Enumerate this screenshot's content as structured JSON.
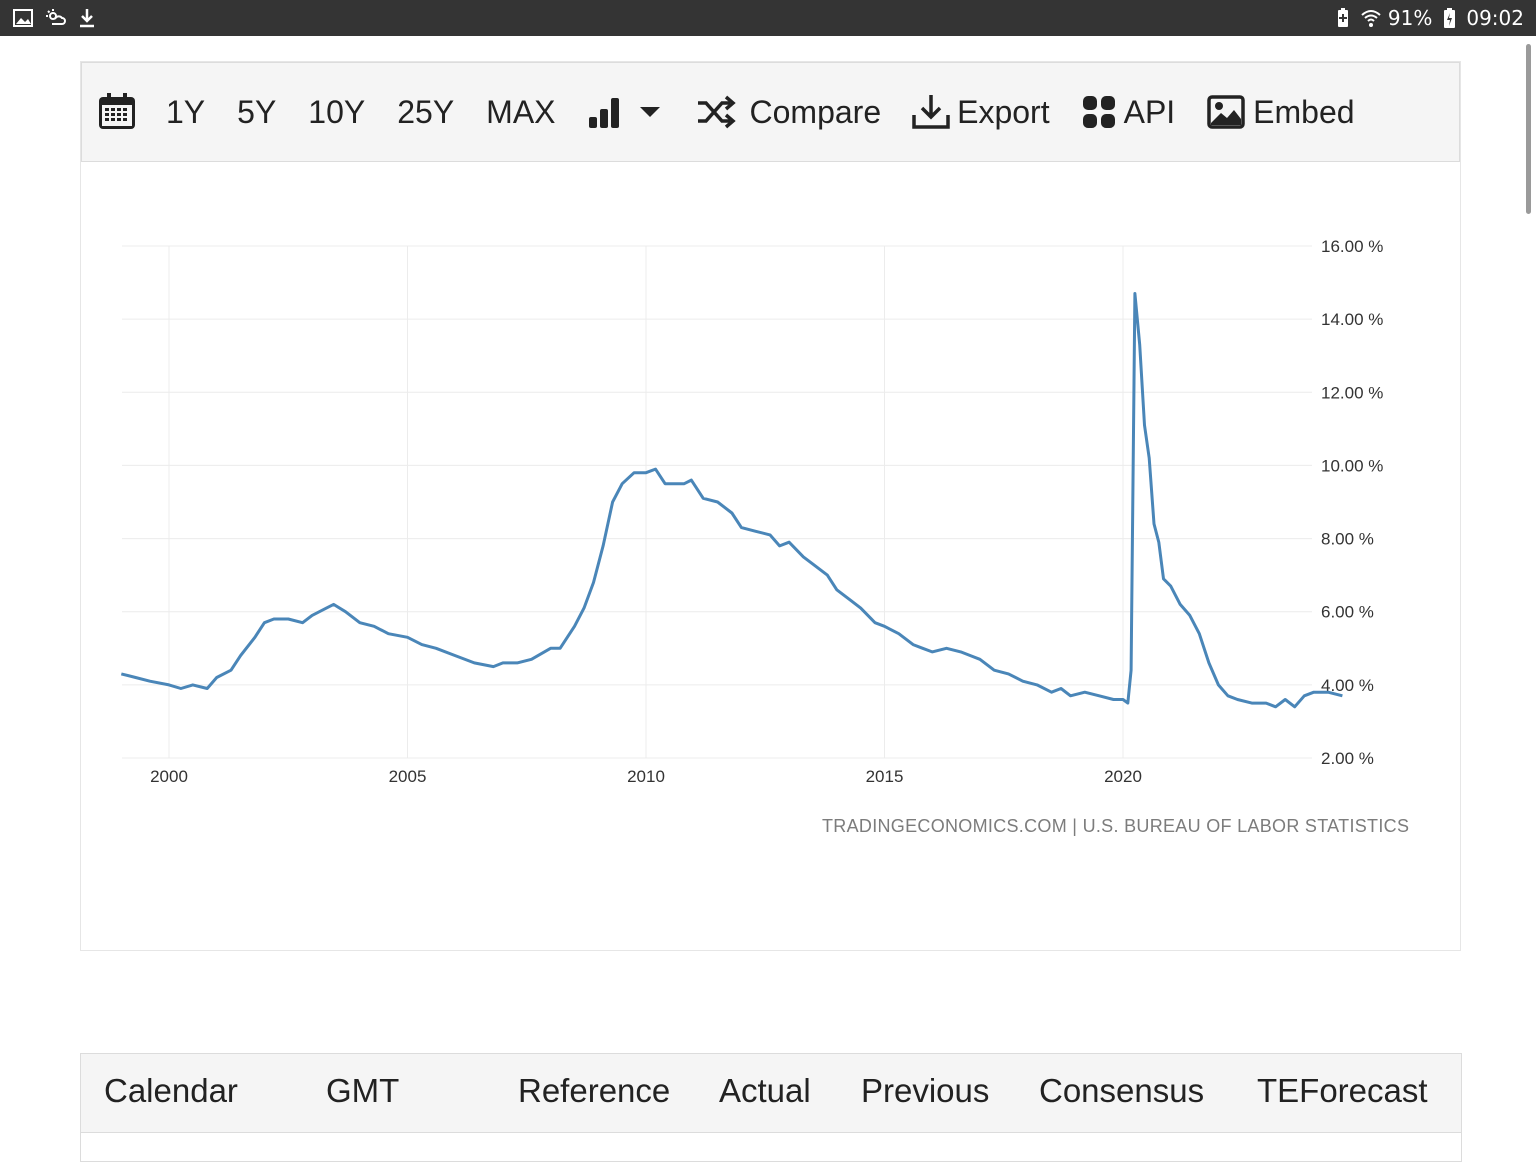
{
  "status_bar": {
    "battery": "91%",
    "time": "09:02",
    "icons_left": [
      "image-icon",
      "cloud-sun-icon",
      "download-icon"
    ],
    "icons_right": [
      "battery-saver-icon",
      "wifi-icon",
      "battery-charging-icon"
    ]
  },
  "toolbar": {
    "ranges": [
      "1Y",
      "5Y",
      "10Y",
      "25Y",
      "MAX"
    ],
    "compare_label": "Compare",
    "export_label": "Export",
    "api_label": "API",
    "embed_label": "Embed"
  },
  "chart_data": {
    "type": "line",
    "line_color": "#4a86b8",
    "x_ticks": [
      2000,
      2005,
      2010,
      2015,
      2020
    ],
    "y_ticks": [
      "16.00 %",
      "14.00 %",
      "12.00 %",
      "10.00 %",
      "8.00 %",
      "6.00 %",
      "4.00 %",
      "2.00 %"
    ],
    "ylim": [
      2,
      16
    ],
    "xlim": [
      1998.5,
      2024.7
    ],
    "grid": true,
    "y_axis_side": "right",
    "series": [
      {
        "x": [
          1999.0,
          1999.3,
          1999.6,
          2000.0,
          2000.25,
          2000.5,
          2000.8,
          2001.0,
          2001.3,
          2001.5,
          2001.8,
          2002.0,
          2002.2,
          2002.5,
          2002.8,
          2003.0,
          2003.3,
          2003.45,
          2003.7,
          2004.0,
          2004.3,
          2004.6,
          2005.0,
          2005.3,
          2005.6,
          2006.0,
          2006.4,
          2006.8,
          2007.0,
          2007.3,
          2007.6,
          2008.0,
          2008.2,
          2008.5,
          2008.7,
          2008.9,
          2009.1,
          2009.3,
          2009.5,
          2009.75,
          2010.0,
          2010.2,
          2010.4,
          2010.6,
          2010.8,
          2010.95,
          2011.2,
          2011.5,
          2011.8,
          2012.0,
          2012.3,
          2012.6,
          2012.8,
          2013.0,
          2013.3,
          2013.5,
          2013.8,
          2014.0,
          2014.3,
          2014.5,
          2014.8,
          2015.0,
          2015.3,
          2015.6,
          2015.8,
          2016.0,
          2016.3,
          2016.6,
          2016.8,
          2017.0,
          2017.3,
          2017.6,
          2017.9,
          2018.2,
          2018.5,
          2018.7,
          2018.9,
          2019.2,
          2019.5,
          2019.8,
          2020.0,
          2020.1,
          2020.17,
          2020.25,
          2020.35,
          2020.45,
          2020.55,
          2020.65,
          2020.75,
          2020.85,
          2021.0,
          2021.2,
          2021.4,
          2021.6,
          2021.8,
          2022.0,
          2022.2,
          2022.4,
          2022.7,
          2023.0,
          2023.2,
          2023.4,
          2023.6,
          2023.8,
          2024.0,
          2024.3,
          2024.6
        ],
        "y": [
          4.3,
          4.2,
          4.1,
          4.0,
          3.9,
          4.0,
          3.9,
          4.2,
          4.4,
          4.8,
          5.3,
          5.7,
          5.8,
          5.8,
          5.7,
          5.9,
          6.1,
          6.2,
          6.0,
          5.7,
          5.6,
          5.4,
          5.3,
          5.1,
          5.0,
          4.8,
          4.6,
          4.5,
          4.6,
          4.6,
          4.7,
          5.0,
          5.0,
          5.6,
          6.1,
          6.8,
          7.8,
          9.0,
          9.5,
          9.8,
          9.8,
          9.9,
          9.5,
          9.5,
          9.5,
          9.6,
          9.1,
          9.0,
          8.7,
          8.3,
          8.2,
          8.1,
          7.8,
          7.9,
          7.5,
          7.3,
          7.0,
          6.6,
          6.3,
          6.1,
          5.7,
          5.6,
          5.4,
          5.1,
          5.0,
          4.9,
          5.0,
          4.9,
          4.8,
          4.7,
          4.4,
          4.3,
          4.1,
          4.0,
          3.8,
          3.9,
          3.7,
          3.8,
          3.7,
          3.6,
          3.6,
          3.5,
          4.4,
          14.7,
          13.3,
          11.1,
          10.2,
          8.4,
          7.9,
          6.9,
          6.7,
          6.2,
          5.9,
          5.4,
          4.6,
          4.0,
          3.7,
          3.6,
          3.5,
          3.5,
          3.4,
          3.6,
          3.4,
          3.7,
          3.8,
          3.8,
          3.7
        ]
      }
    ]
  },
  "attribution": "TRADINGECONOMICS.COM | U.S. BUREAU OF LABOR STATISTICS",
  "table": {
    "headers": [
      "Calendar",
      "GMT",
      "Reference",
      "Actual",
      "Previous",
      "Consensus",
      "TEForecast"
    ]
  }
}
